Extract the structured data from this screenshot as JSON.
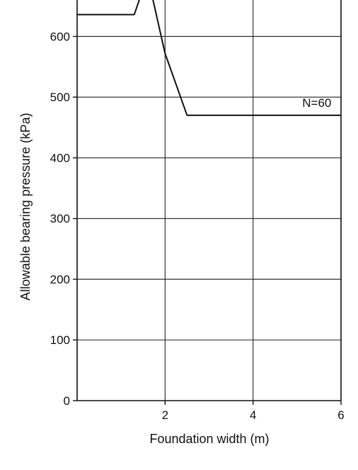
{
  "chart_data": {
    "type": "line",
    "title": "",
    "xlabel": "Foundation width (m)",
    "ylabel": "Allowable bearing pressure (kPa)",
    "xlim": [
      0,
      6
    ],
    "ylim": [
      0,
      660
    ],
    "xticks": [
      2,
      4,
      6
    ],
    "yticks": [
      0,
      100,
      200,
      300,
      400,
      500,
      600
    ],
    "grid": true,
    "series": [
      {
        "name": "N=60",
        "x": [
          0,
          1.3,
          1.6,
          2,
          2.5,
          3,
          3.5,
          4,
          4.5,
          5,
          5.5,
          6
        ],
        "y": [
          636,
          636,
          700,
          572,
          470,
          470,
          470,
          470,
          470,
          470,
          470,
          470
        ]
      }
    ]
  }
}
